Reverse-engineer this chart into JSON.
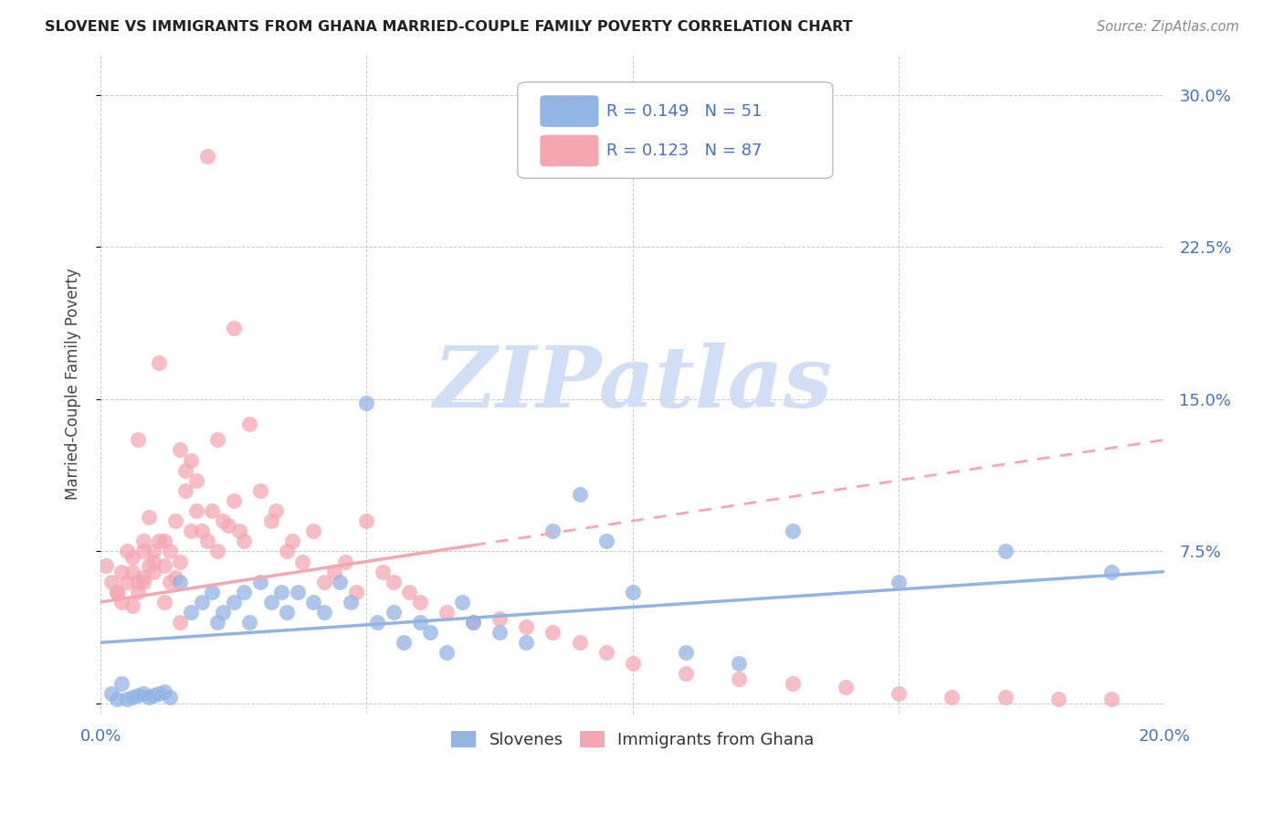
{
  "title": "SLOVENE VS IMMIGRANTS FROM GHANA MARRIED-COUPLE FAMILY POVERTY CORRELATION CHART",
  "source": "Source: ZipAtlas.com",
  "ylabel": "Married-Couple Family Poverty",
  "xlim": [
    0.0,
    0.2
  ],
  "ylim": [
    -0.005,
    0.32
  ],
  "xticks": [
    0.0,
    0.05,
    0.1,
    0.15,
    0.2
  ],
  "xticklabels": [
    "0.0%",
    "",
    "",
    "",
    "20.0%"
  ],
  "yticks": [
    0.0,
    0.075,
    0.15,
    0.225,
    0.3
  ],
  "yticklabels_right": [
    "",
    "7.5%",
    "15.0%",
    "22.5%",
    "30.0%"
  ],
  "legend_bottom_label1": "Slovenes",
  "legend_bottom_label2": "Immigrants from Ghana",
  "color_slovene": "#92b4e3",
  "color_ghana": "#f4a7b0",
  "color_text_blue": "#4472c4",
  "watermark_color": "#d0dff5",
  "background_color": "#ffffff",
  "grid_color": "#c8c8c8",
  "slovene_scatter_x": [
    0.002,
    0.003,
    0.004,
    0.005,
    0.006,
    0.007,
    0.008,
    0.009,
    0.01,
    0.011,
    0.012,
    0.013,
    0.015,
    0.017,
    0.019,
    0.021,
    0.022,
    0.023,
    0.025,
    0.027,
    0.028,
    0.03,
    0.032,
    0.034,
    0.035,
    0.037,
    0.04,
    0.042,
    0.045,
    0.047,
    0.05,
    0.052,
    0.055,
    0.057,
    0.06,
    0.062,
    0.065,
    0.068,
    0.07,
    0.075,
    0.08,
    0.085,
    0.09,
    0.095,
    0.1,
    0.11,
    0.12,
    0.13,
    0.15,
    0.17,
    0.19
  ],
  "slovene_scatter_y": [
    0.005,
    0.002,
    0.01,
    0.002,
    0.003,
    0.004,
    0.005,
    0.003,
    0.004,
    0.005,
    0.006,
    0.003,
    0.06,
    0.045,
    0.05,
    0.055,
    0.04,
    0.045,
    0.05,
    0.055,
    0.04,
    0.06,
    0.05,
    0.055,
    0.045,
    0.055,
    0.05,
    0.045,
    0.06,
    0.05,
    0.148,
    0.04,
    0.045,
    0.03,
    0.04,
    0.035,
    0.025,
    0.05,
    0.04,
    0.035,
    0.03,
    0.085,
    0.103,
    0.08,
    0.055,
    0.025,
    0.02,
    0.085,
    0.06,
    0.075,
    0.065
  ],
  "ghana_scatter_x": [
    0.001,
    0.002,
    0.003,
    0.004,
    0.004,
    0.005,
    0.005,
    0.006,
    0.006,
    0.007,
    0.007,
    0.007,
    0.008,
    0.008,
    0.008,
    0.009,
    0.009,
    0.01,
    0.01,
    0.01,
    0.011,
    0.011,
    0.012,
    0.012,
    0.013,
    0.013,
    0.014,
    0.014,
    0.015,
    0.015,
    0.016,
    0.016,
    0.017,
    0.017,
    0.018,
    0.018,
    0.019,
    0.02,
    0.02,
    0.021,
    0.022,
    0.022,
    0.023,
    0.024,
    0.025,
    0.025,
    0.026,
    0.027,
    0.028,
    0.03,
    0.032,
    0.033,
    0.035,
    0.036,
    0.038,
    0.04,
    0.042,
    0.044,
    0.046,
    0.048,
    0.05,
    0.053,
    0.055,
    0.058,
    0.06,
    0.065,
    0.07,
    0.075,
    0.08,
    0.085,
    0.09,
    0.095,
    0.1,
    0.11,
    0.12,
    0.13,
    0.14,
    0.15,
    0.16,
    0.17,
    0.18,
    0.19,
    0.003,
    0.006,
    0.008,
    0.012,
    0.015
  ],
  "ghana_scatter_y": [
    0.068,
    0.06,
    0.055,
    0.065,
    0.05,
    0.06,
    0.075,
    0.065,
    0.072,
    0.06,
    0.055,
    0.13,
    0.062,
    0.075,
    0.08,
    0.068,
    0.092,
    0.07,
    0.075,
    0.065,
    0.08,
    0.168,
    0.068,
    0.08,
    0.06,
    0.075,
    0.062,
    0.09,
    0.07,
    0.125,
    0.105,
    0.115,
    0.085,
    0.12,
    0.11,
    0.095,
    0.085,
    0.27,
    0.08,
    0.095,
    0.075,
    0.13,
    0.09,
    0.088,
    0.1,
    0.185,
    0.085,
    0.08,
    0.138,
    0.105,
    0.09,
    0.095,
    0.075,
    0.08,
    0.07,
    0.085,
    0.06,
    0.065,
    0.07,
    0.055,
    0.09,
    0.065,
    0.06,
    0.055,
    0.05,
    0.045,
    0.04,
    0.042,
    0.038,
    0.035,
    0.03,
    0.025,
    0.02,
    0.015,
    0.012,
    0.01,
    0.008,
    0.005,
    0.003,
    0.003,
    0.002,
    0.002,
    0.055,
    0.048,
    0.06,
    0.05,
    0.04
  ],
  "slovene_trend_x": [
    0.0,
    0.2
  ],
  "slovene_trend_y": [
    0.03,
    0.065
  ],
  "ghana_trend_x": [
    0.0,
    0.2
  ],
  "ghana_trend_y": [
    0.05,
    0.13
  ]
}
